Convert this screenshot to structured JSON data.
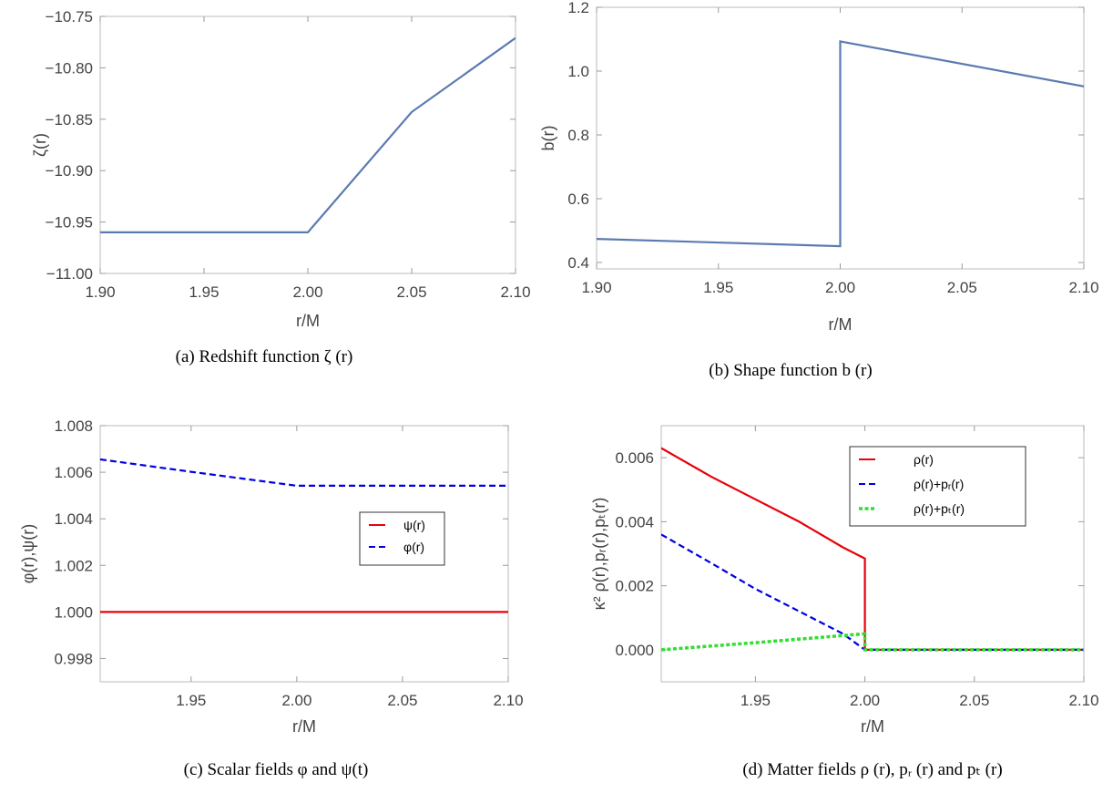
{
  "colors": {
    "steel_blue": "#5b7bb0",
    "red": "#e8000b",
    "blue": "#0000e0",
    "green": "#33dd33",
    "frame": "#bbbbbb"
  },
  "chart_data": [
    {
      "id": "a",
      "type": "line",
      "caption": "(a) Redshift function ζ (r)",
      "xlabel": "r/M",
      "ylabel": "ζ(r)",
      "xlim": [
        1.9,
        2.1
      ],
      "ylim": [
        -11.0,
        -10.75
      ],
      "xticks": [
        1.9,
        1.95,
        2.0,
        2.05,
        2.1
      ],
      "xtick_labels": [
        "1.90",
        "1.95",
        "2.00",
        "2.05",
        "2.10"
      ],
      "yticks": [
        -11.0,
        -10.95,
        -10.9,
        -10.85,
        -10.8,
        -10.75
      ],
      "ytick_labels": [
        "−11.00",
        "−10.95",
        "−10.90",
        "−10.85",
        "−10.80",
        "−10.75"
      ],
      "grid": false,
      "series": [
        {
          "color": "#5b7bb0",
          "dash": "solid",
          "x": [
            1.9,
            2.0,
            2.05,
            2.1
          ],
          "y": [
            -10.96,
            -10.96,
            -10.843,
            -10.771
          ]
        }
      ]
    },
    {
      "id": "b",
      "type": "line",
      "caption": "(b) Shape function b (r)",
      "xlabel": "r/M",
      "ylabel": "b(r)",
      "xlim": [
        1.9,
        2.1
      ],
      "ylim": [
        0.38,
        1.2
      ],
      "xticks": [
        1.9,
        1.95,
        2.0,
        2.05,
        2.1
      ],
      "xtick_labels": [
        "1.90",
        "1.95",
        "2.00",
        "2.05",
        "2.10"
      ],
      "yticks": [
        0.4,
        0.6,
        0.8,
        1.0,
        1.2
      ],
      "ytick_labels": [
        "0.4",
        "0.6",
        "0.8",
        "1.0",
        "1.2"
      ],
      "grid": false,
      "series": [
        {
          "color": "#5b7bb0",
          "dash": "solid",
          "x": [
            1.9,
            2.0,
            2.0,
            2.1
          ],
          "y": [
            0.474,
            0.451,
            1.093,
            0.952
          ]
        }
      ]
    },
    {
      "id": "c",
      "type": "line",
      "caption": "(c) Scalar fields φ and ψ(t)",
      "xlabel": "r/M",
      "ylabel": "φ(r),ψ(r)",
      "xlim": [
        1.907,
        2.1
      ],
      "ylim": [
        0.997,
        1.008
      ],
      "xticks": [
        1.95,
        2.0,
        2.05,
        2.1
      ],
      "xtick_labels": [
        "1.95",
        "2.00",
        "2.05",
        "2.10"
      ],
      "yticks": [
        0.998,
        1.0,
        1.002,
        1.004,
        1.006,
        1.008
      ],
      "ytick_labels": [
        "0.998",
        "1.000",
        "1.002",
        "1.004",
        "1.006",
        "1.008"
      ],
      "grid": false,
      "legend": {
        "placement": "center-right",
        "entries": [
          "ψ(r)",
          "φ(r)"
        ]
      },
      "series": [
        {
          "name": "ψ(r)",
          "color": "#e8000b",
          "dash": "solid",
          "x": [
            1.907,
            2.1
          ],
          "y": [
            1.0,
            1.0
          ]
        },
        {
          "name": "φ(r)",
          "color": "#0000e0",
          "dash": "dashed",
          "x": [
            1.907,
            1.95,
            2.0,
            2.1
          ],
          "y": [
            1.00655,
            1.00602,
            1.00542,
            1.00542
          ]
        }
      ]
    },
    {
      "id": "d",
      "type": "line",
      "caption": "(d) Matter fields ρ (r), pᵣ (r) and pₜ (r)",
      "xlabel": "r/M",
      "ylabel": "κ² ρ(r),pᵣ(r),pₜ(r)",
      "xlim": [
        1.907,
        2.1
      ],
      "ylim": [
        -0.001,
        0.007
      ],
      "xticks": [
        1.95,
        2.0,
        2.05,
        2.1
      ],
      "xtick_labels": [
        "1.95",
        "2.00",
        "2.05",
        "2.10"
      ],
      "yticks": [
        0.0,
        0.002,
        0.004,
        0.006
      ],
      "ytick_labels": [
        "0.000",
        "0.002",
        "0.004",
        "0.006"
      ],
      "grid": false,
      "legend": {
        "placement": "top-right",
        "entries": [
          "ρ(r)",
          "ρ(r)+pᵣ(r)",
          "ρ(r)+pₜ(r)"
        ]
      },
      "series": [
        {
          "name": "ρ(r)",
          "color": "#e8000b",
          "dash": "solid",
          "x": [
            1.907,
            1.93,
            1.95,
            1.97,
            1.99,
            2.0,
            2.0,
            2.1
          ],
          "y": [
            0.0063,
            0.0054,
            0.0047,
            0.004,
            0.0032,
            0.00285,
            0.0,
            0.0
          ]
        },
        {
          "name": "ρ(r)+pᵣ(r)",
          "color": "#0000e0",
          "dash": "dashed",
          "x": [
            1.907,
            1.93,
            1.95,
            1.97,
            1.99,
            2.0,
            2.1
          ],
          "y": [
            0.0036,
            0.0027,
            0.0019,
            0.0012,
            0.0005,
            0.0,
            0.0
          ]
        },
        {
          "name": "ρ(r)+pₜ(r)",
          "color": "#33dd33",
          "dash": "dotted",
          "x": [
            1.907,
            1.95,
            2.0,
            2.0,
            2.1
          ],
          "y": [
            0.0,
            0.00022,
            0.0005,
            0.0,
            0.0
          ]
        }
      ]
    }
  ]
}
